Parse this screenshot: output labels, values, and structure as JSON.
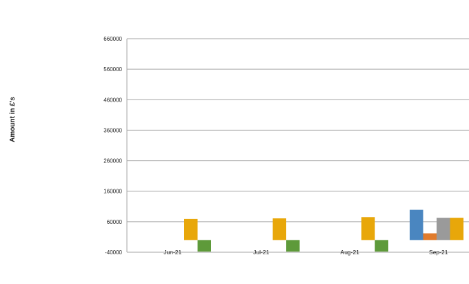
{
  "chart_data": {
    "type": "bar",
    "title": "",
    "xlabel": "",
    "ylabel": "Amount in £'s",
    "ylim": [
      -40000,
      660000
    ],
    "yticks": [
      -40000,
      60000,
      160000,
      260000,
      360000,
      460000,
      560000,
      660000
    ],
    "categories": [
      "Jun-21",
      "Jul-21",
      "Aug-21",
      "Sep-21"
    ],
    "grid": true,
    "legend": "none",
    "series": [
      {
        "color": "#4a86c0",
        "values": [
          0,
          0,
          0,
          99000
        ]
      },
      {
        "color": "#e07b2c",
        "values": [
          0,
          0,
          0,
          22000
        ]
      },
      {
        "color": "#9a9a9a",
        "values": [
          0,
          0,
          0,
          73000
        ]
      },
      {
        "color": "#e8a70a",
        "values": [
          69000,
          71000,
          75000,
          73000
        ]
      },
      {
        "color": "#5e9a3a",
        "values": [
          -38000,
          -38000,
          -38000,
          0
        ]
      }
    ]
  }
}
